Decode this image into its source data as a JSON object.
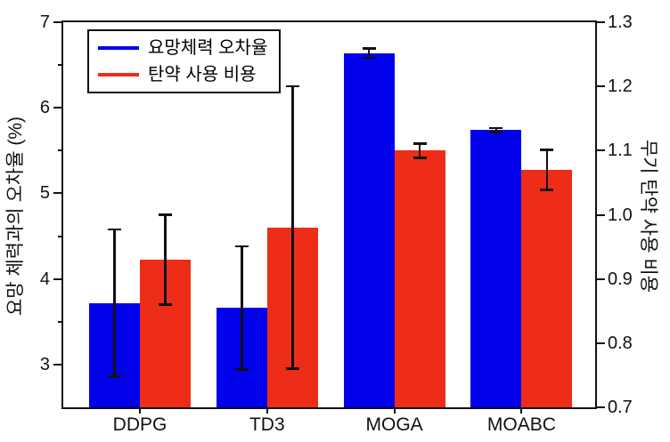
{
  "colors": {
    "blue_series": "#0101ec",
    "red_series": "#ee2d19",
    "axis": "#111111",
    "background": "#ffffff"
  },
  "legend": {
    "position": "upper left",
    "items": [
      {
        "label": "요망체력 오차율",
        "color": "#0101ec"
      },
      {
        "label": "탄약 사용 비용",
        "color": "#ee2d19"
      }
    ]
  },
  "chart_data": {
    "type": "bar",
    "title": "",
    "xlabel": "",
    "categories": [
      "DDPG",
      "TD3",
      "MOGA",
      "MOABC"
    ],
    "grid": false,
    "series": [
      {
        "name": "요망체력 오차율",
        "axis": "left",
        "color": "#0101ec",
        "values": [
          3.72,
          3.66,
          6.64,
          5.74
        ],
        "errors": [
          0.86,
          0.72,
          0.055,
          0.025
        ]
      },
      {
        "name": "탄약 사용 비용",
        "axis": "right",
        "color": "#ee2d19",
        "values": [
          0.93,
          0.98,
          1.1,
          1.07
        ],
        "errors": [
          0.07,
          0.22,
          0.011,
          0.031
        ]
      }
    ],
    "axes": {
      "left": {
        "label": "요망 체력과의 오차율 (%)",
        "min": 2.5,
        "max": 7,
        "ticks": [
          7,
          6,
          5,
          4,
          3
        ],
        "minor_ticks": [
          6.5,
          5.5,
          4.5,
          3.5
        ]
      },
      "right": {
        "label": "무기 탄약 사용 비용",
        "min": 0.7,
        "max": 1.3,
        "ticks": [
          1.3,
          1.2,
          1.1,
          1.0,
          0.9,
          0.8,
          0.7
        ]
      }
    }
  }
}
